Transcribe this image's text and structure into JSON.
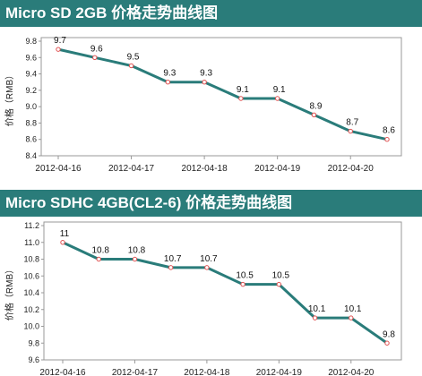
{
  "chart_data": [
    {
      "type": "line",
      "title": "Micro SD 2GB 价格走势曲线图",
      "xlabel": "",
      "ylabel": "价格（RMB）",
      "x_tick_labels": [
        "2012-04-16",
        "2012-04-17",
        "2012-04-18",
        "2012-04-19",
        "2012-04-20"
      ],
      "x": [
        0,
        0.5,
        1,
        1.5,
        2,
        2.5,
        3,
        3.5,
        4,
        4.5
      ],
      "values": [
        9.7,
        9.6,
        9.5,
        9.3,
        9.3,
        9.1,
        9.1,
        8.9,
        8.7,
        8.6
      ],
      "data_labels": [
        "9.7",
        "9.6",
        "9.5",
        "9.3",
        "9.3",
        "9.1",
        "9.1",
        "8.9",
        "8.7",
        "8.6"
      ],
      "y_ticks": [
        "8.4",
        "8.6",
        "8.8",
        "9.0",
        "9.2",
        "9.4",
        "9.6",
        "9.8"
      ],
      "ylim": [
        8.4,
        9.8
      ],
      "grid": false,
      "line_color": "#2a7c7a",
      "marker_color": "#e05050"
    },
    {
      "type": "line",
      "title": "Micro SDHC 4GB(CL2-6) 价格走势曲线图",
      "xlabel": "",
      "ylabel": "价格（RMB）",
      "x_tick_labels": [
        "2012-04-16",
        "2012-04-17",
        "2012-04-18",
        "2012-04-19",
        "2012-04-20"
      ],
      "x": [
        0,
        0.5,
        1,
        1.5,
        2,
        2.5,
        3,
        3.5,
        4,
        4.5
      ],
      "values": [
        11,
        10.8,
        10.8,
        10.7,
        10.7,
        10.5,
        10.5,
        10.1,
        10.1,
        9.8
      ],
      "data_labels": [
        "11",
        "10.8",
        "10.8",
        "10.7",
        "10.7",
        "10.5",
        "10.5",
        "10.1",
        "10.1",
        "9.8"
      ],
      "y_ticks": [
        "9.6",
        "9.8",
        "10.0",
        "10.2",
        "10.4",
        "10.6",
        "10.8",
        "11.0",
        "11.2"
      ],
      "ylim": [
        9.6,
        11.2
      ],
      "grid": false,
      "line_color": "#2a7c7a",
      "marker_color": "#e05050"
    }
  ]
}
